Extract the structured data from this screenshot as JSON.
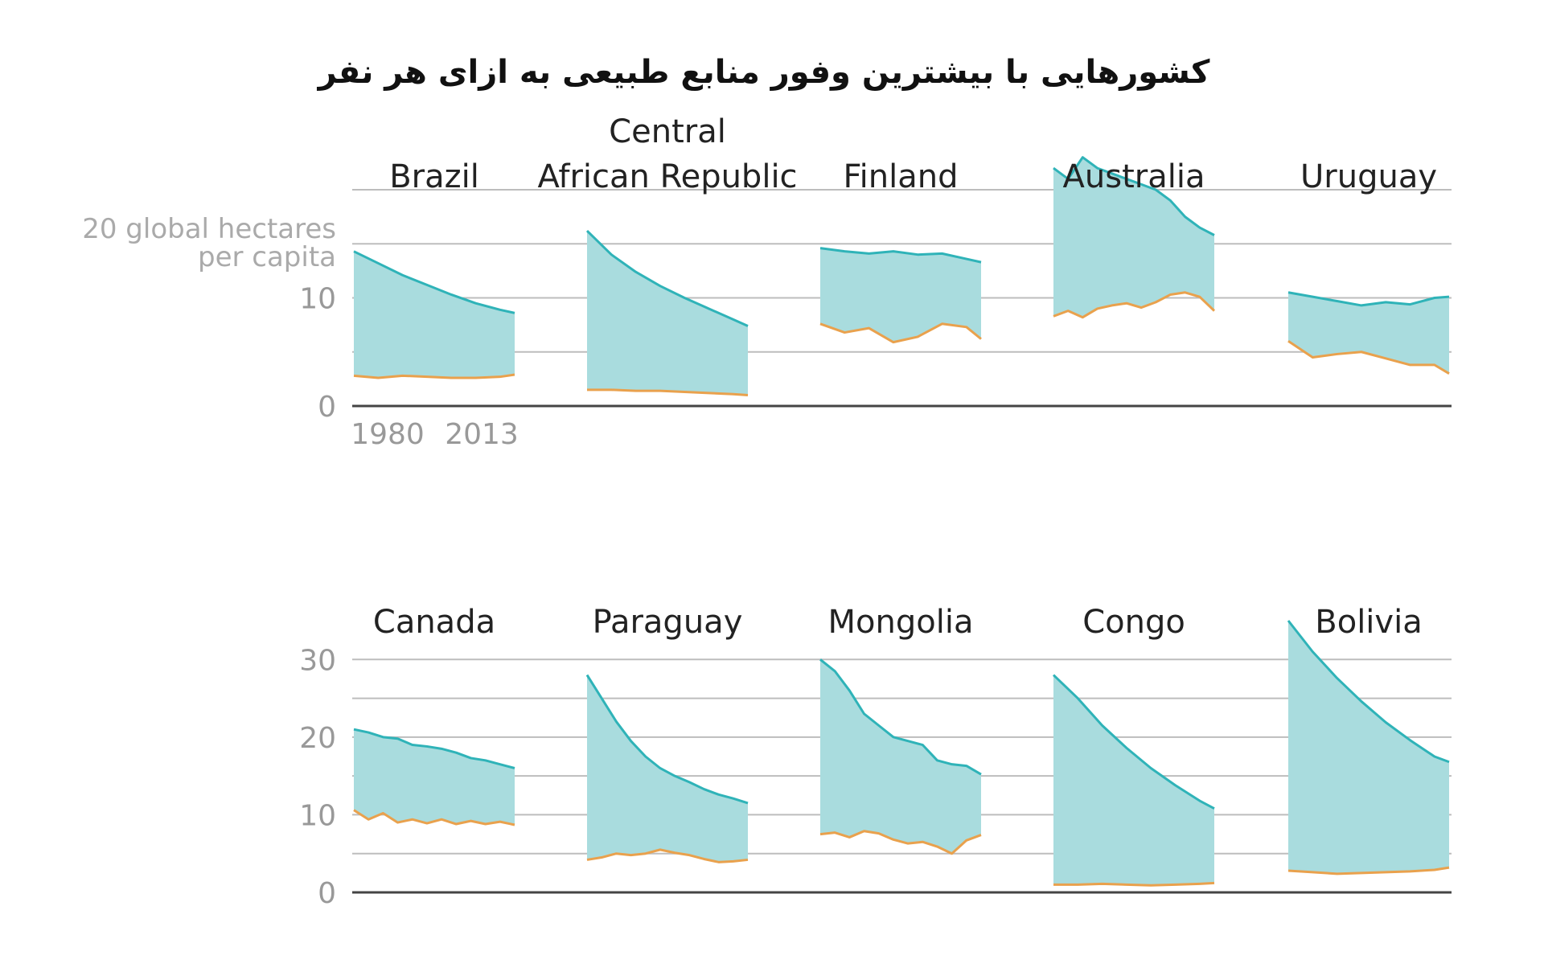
{
  "title": "کشورهایی با بیشترین وفور منابع طبیعی به ازای هر نفر",
  "colors": {
    "fill": "#a9dcde",
    "biocapacity_line": "#2fb3b8",
    "footprint_line": "#e9a14d",
    "grid": "#bdbdbd",
    "axis": "#444444",
    "tick_text": "#999999"
  },
  "chart_data": [
    {
      "type": "area",
      "panel": "top-row",
      "ylabel": "20 global hectares per capita",
      "ylabel_lines": [
        "20 global hectares",
        "per capita"
      ],
      "x_range": [
        1980,
        2013
      ],
      "x_tick_labels": [
        "1980",
        "2013"
      ],
      "ylim": [
        0,
        20
      ],
      "y_grid": [
        5,
        10,
        15,
        20
      ],
      "y_tick_labels": [
        {
          "value": 10,
          "label": "10"
        },
        {
          "value": 0,
          "label": "0"
        }
      ],
      "countries": [
        {
          "name": "Brazil",
          "label_lines": [
            "Brazil"
          ],
          "x": [
            1980,
            1985,
            1990,
            1995,
            2000,
            2005,
            2010,
            2013
          ],
          "biocapacity": [
            14.3,
            13.2,
            12.1,
            11.2,
            10.3,
            9.5,
            8.9,
            8.6
          ],
          "footprint": [
            2.8,
            2.6,
            2.8,
            2.7,
            2.6,
            2.6,
            2.7,
            2.9
          ]
        },
        {
          "name": "Central African Republic",
          "label_lines": [
            "Central",
            "African Republic"
          ],
          "x": [
            1980,
            1985,
            1990,
            1995,
            2000,
            2005,
            2010,
            2013
          ],
          "biocapacity": [
            16.2,
            14.0,
            12.4,
            11.1,
            10.0,
            9.0,
            8.0,
            7.4
          ],
          "footprint": [
            1.5,
            1.5,
            1.4,
            1.4,
            1.3,
            1.2,
            1.1,
            1.0
          ]
        },
        {
          "name": "Finland",
          "label_lines": [
            "Finland"
          ],
          "x": [
            1980,
            1985,
            1990,
            1995,
            2000,
            2005,
            2010,
            2013
          ],
          "biocapacity": [
            14.6,
            14.3,
            14.1,
            14.3,
            14.0,
            14.1,
            13.6,
            13.3
          ],
          "footprint": [
            7.6,
            6.8,
            7.2,
            5.9,
            6.4,
            7.6,
            7.3,
            6.2
          ]
        },
        {
          "name": "Australia",
          "label_lines": [
            "Australia"
          ],
          "x": [
            1980,
            1983,
            1986,
            1989,
            1992,
            1995,
            1998,
            2001,
            2004,
            2007,
            2010,
            2013
          ],
          "biocapacity": [
            22.0,
            21.0,
            23.0,
            22.0,
            21.5,
            21.0,
            20.5,
            20.0,
            19.0,
            17.5,
            16.5,
            15.8
          ],
          "footprint": [
            8.3,
            8.8,
            8.2,
            9.0,
            9.3,
            9.5,
            9.1,
            9.6,
            10.3,
            10.5,
            10.1,
            8.8
          ]
        },
        {
          "name": "Uruguay",
          "label_lines": [
            "Uruguay"
          ],
          "x": [
            1980,
            1985,
            1990,
            1995,
            2000,
            2005,
            2010,
            2013
          ],
          "biocapacity": [
            10.5,
            10.1,
            9.7,
            9.3,
            9.6,
            9.4,
            10.0,
            10.1
          ],
          "footprint": [
            6.0,
            4.5,
            4.8,
            5.0,
            4.4,
            3.8,
            3.8,
            3.0
          ]
        }
      ]
    },
    {
      "type": "area",
      "panel": "bottom-row",
      "x_range": [
        1980,
        2013
      ],
      "ylim": [
        0,
        35
      ],
      "y_grid": [
        5,
        10,
        15,
        20,
        25,
        30
      ],
      "y_tick_labels": [
        {
          "value": 30,
          "label": "30"
        },
        {
          "value": 20,
          "label": "20"
        },
        {
          "value": 10,
          "label": "10"
        },
        {
          "value": 0,
          "label": "0"
        }
      ],
      "countries": [
        {
          "name": "Canada",
          "label_lines": [
            "Canada"
          ],
          "x": [
            1980,
            1983,
            1986,
            1989,
            1992,
            1995,
            1998,
            2001,
            2004,
            2007,
            2010,
            2013
          ],
          "biocapacity": [
            21.0,
            20.6,
            20.0,
            19.8,
            19.0,
            18.8,
            18.5,
            18.0,
            17.3,
            17.0,
            16.5,
            16.0
          ],
          "footprint": [
            10.6,
            9.4,
            10.2,
            9.0,
            9.4,
            8.9,
            9.4,
            8.8,
            9.2,
            8.8,
            9.1,
            8.7
          ]
        },
        {
          "name": "Paraguay",
          "label_lines": [
            "Paraguay"
          ],
          "x": [
            1980,
            1983,
            1986,
            1989,
            1992,
            1995,
            1998,
            2001,
            2004,
            2007,
            2010,
            2013
          ],
          "biocapacity": [
            28.0,
            25.0,
            22.0,
            19.5,
            17.5,
            16.0,
            15.0,
            14.2,
            13.3,
            12.6,
            12.1,
            11.5
          ],
          "footprint": [
            4.2,
            4.5,
            5.0,
            4.8,
            5.0,
            5.5,
            5.1,
            4.8,
            4.3,
            3.9,
            4.0,
            4.2
          ]
        },
        {
          "name": "Mongolia",
          "label_lines": [
            "Mongolia"
          ],
          "x": [
            1980,
            1983,
            1986,
            1989,
            1992,
            1995,
            1998,
            2001,
            2004,
            2007,
            2010,
            2013
          ],
          "biocapacity": [
            30.0,
            28.5,
            26.0,
            23.0,
            21.5,
            20.0,
            19.5,
            19.0,
            17.0,
            16.5,
            16.3,
            15.2
          ],
          "footprint": [
            7.5,
            7.7,
            7.1,
            7.9,
            7.6,
            6.8,
            6.3,
            6.5,
            5.9,
            5.0,
            6.7,
            7.4
          ]
        },
        {
          "name": "Congo",
          "label_lines": [
            "Congo"
          ],
          "x": [
            1980,
            1985,
            1990,
            1995,
            2000,
            2005,
            2010,
            2013
          ],
          "biocapacity": [
            28.0,
            25.0,
            21.5,
            18.6,
            16.0,
            13.8,
            11.8,
            10.8
          ],
          "footprint": [
            1.0,
            1.0,
            1.1,
            1.0,
            0.9,
            1.0,
            1.1,
            1.2
          ]
        },
        {
          "name": "Bolivia",
          "label_lines": [
            "Bolivia"
          ],
          "x": [
            1980,
            1985,
            1990,
            1995,
            2000,
            2005,
            2010,
            2013
          ],
          "biocapacity": [
            35.0,
            31.0,
            27.6,
            24.6,
            21.9,
            19.6,
            17.5,
            16.8
          ],
          "footprint": [
            2.8,
            2.6,
            2.4,
            2.5,
            2.6,
            2.7,
            2.9,
            3.2
          ]
        }
      ]
    }
  ]
}
